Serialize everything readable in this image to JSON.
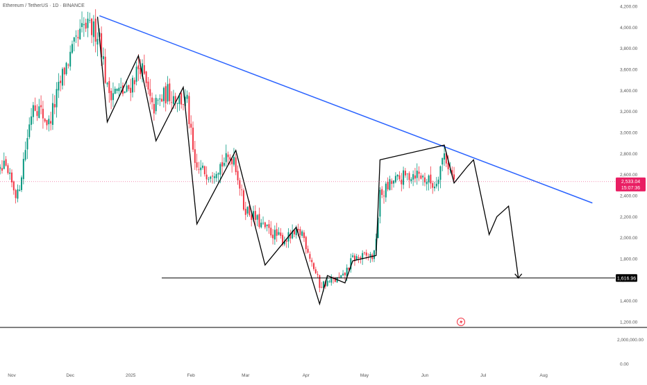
{
  "header": {
    "title": "Ethereum / TetherUS · 1D · BINANCE"
  },
  "chart_data": {
    "type": "candlestick",
    "symbol": "Ethereum / TetherUS",
    "interval": "1D",
    "exchange": "BINANCE",
    "price_axis": {
      "ticks": [
        "4,200.00",
        "4,000.00",
        "3,800.00",
        "3,600.00",
        "3,400.00",
        "3,200.00",
        "3,000.00",
        "2,800.00",
        "2,600.00",
        "2,400.00",
        "2,200.00",
        "2,000.00",
        "1,800.00",
        "1,600.00",
        "1,400.00",
        "1,200.00"
      ],
      "range": [
        1130,
        4230
      ]
    },
    "volume_axis": {
      "ticks": [
        "2,000,000.00",
        "0.00"
      ]
    },
    "time_axis": [
      "Nov",
      "Dec",
      "2025",
      "Feb",
      "Mar",
      "Apr",
      "May",
      "Jun",
      "Jul",
      "Aug"
    ],
    "last_price": {
      "label": "2,533.04",
      "countdown": "15:07:36",
      "value": 2533.04,
      "color": "#e91e63"
    },
    "support_level": {
      "label": "1,616.96",
      "value": 1616.96
    },
    "trendline": {
      "color": "#2962ff",
      "from": {
        "date": "Dec 16",
        "price": 4110
      },
      "to": {
        "date": "Aug 26",
        "price": 2330
      }
    },
    "candle_anchors": [
      {
        "date": "Oct 20",
        "close": 2460
      },
      {
        "date": "Oct 28",
        "close": 2660
      },
      {
        "date": "Nov 4",
        "close": 2400
      },
      {
        "date": "Nov 12",
        "close": 3300
      },
      {
        "date": "Nov 20",
        "close": 3080
      },
      {
        "date": "Nov 28",
        "close": 3600
      },
      {
        "date": "Dec 8",
        "close": 4000
      },
      {
        "date": "Dec 16",
        "close": 3950
      },
      {
        "date": "Dec 20",
        "close": 3400
      },
      {
        "date": "Dec 30",
        "close": 3380
      },
      {
        "date": "Jan 6",
        "close": 3650
      },
      {
        "date": "Jan 12",
        "close": 3220
      },
      {
        "date": "Jan 20",
        "close": 3380
      },
      {
        "date": "Jan 30",
        "close": 3280
      },
      {
        "date": "Feb 3",
        "close": 2650
      },
      {
        "date": "Feb 10",
        "close": 2620
      },
      {
        "date": "Feb 23",
        "close": 2780
      },
      {
        "date": "Feb 28",
        "close": 2300
      },
      {
        "date": "Mar 10",
        "close": 2100
      },
      {
        "date": "Mar 20",
        "close": 1980
      },
      {
        "date": "Mar 30",
        "close": 2050
      },
      {
        "date": "Apr 8",
        "close": 1550
      },
      {
        "date": "Apr 20",
        "close": 1620
      },
      {
        "date": "Apr 25",
        "close": 1800
      },
      {
        "date": "May 6",
        "close": 1830
      },
      {
        "date": "May 9",
        "close": 2400
      },
      {
        "date": "May 15",
        "close": 2520
      },
      {
        "date": "May 27",
        "close": 2620
      },
      {
        "date": "Jun 6",
        "close": 2500
      },
      {
        "date": "Jun 11",
        "close": 2800
      },
      {
        "date": "Jun 16",
        "close": 2530
      }
    ],
    "zigzag_path": [
      {
        "date": "Dec 15",
        "price": 4100
      },
      {
        "date": "Dec 20",
        "price": 3100
      },
      {
        "date": "Jan 5",
        "price": 3730
      },
      {
        "date": "Jan 14",
        "price": 2920
      },
      {
        "date": "Jan 28",
        "price": 3430
      },
      {
        "date": "Feb 4",
        "price": 2130
      },
      {
        "date": "Feb 24",
        "price": 2830
      },
      {
        "date": "Mar 11",
        "price": 1740
      },
      {
        "date": "Mar 27",
        "price": 2100
      },
      {
        "date": "Apr 8",
        "price": 1370
      },
      {
        "date": "Apr 12",
        "price": 1640
      },
      {
        "date": "Apr 21",
        "price": 1570
      },
      {
        "date": "Apr 25",
        "price": 1780
      },
      {
        "date": "May 7",
        "price": 1830
      },
      {
        "date": "May 9",
        "price": 2740
      },
      {
        "date": "Jun 11",
        "price": 2880
      },
      {
        "date": "Jun 16",
        "price": 2520
      },
      {
        "date": "Jun 23",
        "price": 2680
      },
      {
        "date": "Jun 26",
        "price": 2740
      },
      {
        "date": "Jul 4",
        "price": 2030
      },
      {
        "date": "Jul 8",
        "price": 2200
      },
      {
        "date": "Jul 11",
        "price": 2250
      },
      {
        "date": "Jul 14",
        "price": 2300
      },
      {
        "date": "Jul 19",
        "price": 1617
      }
    ],
    "colors": {
      "up": "#089981",
      "down": "#f23645",
      "axis_text": "#555555"
    }
  }
}
